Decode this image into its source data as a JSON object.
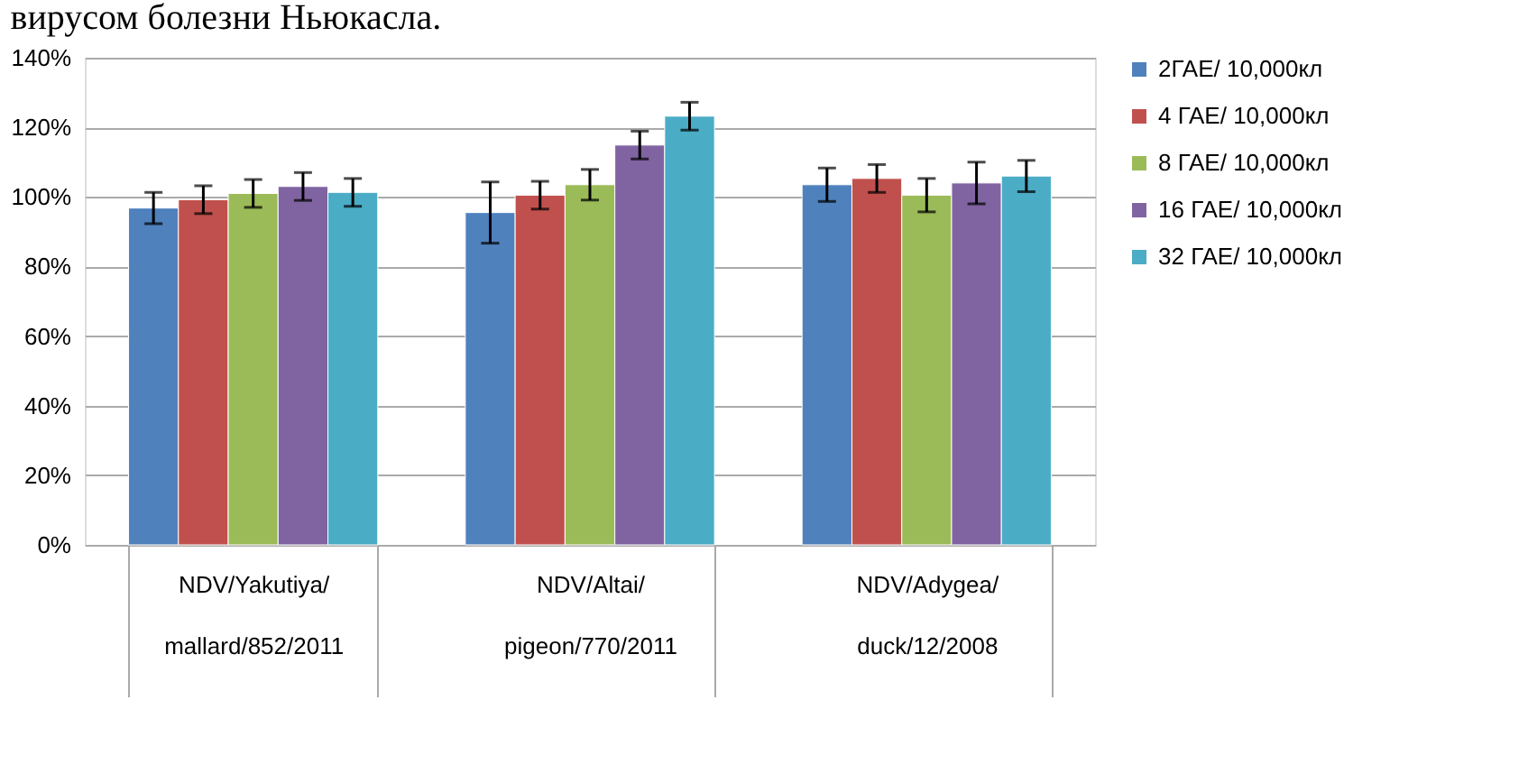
{
  "chart_data": {
    "type": "bar",
    "categories": [
      "NDV/Yakutiya/\nmallard/852/2011",
      "NDV/Altai/\npigeon/770/2011",
      "NDV/Adygea/\nduck/12/2008"
    ],
    "series": [
      {
        "name": "2ГАЕ/ 10,000кл",
        "color": "#4f81bd",
        "values": [
          96.8,
          95.5,
          103.5
        ],
        "errors": [
          4.5,
          8.8,
          4.8
        ]
      },
      {
        "name": "4 ГАЕ/ 10,000кл",
        "color": "#c0504d",
        "values": [
          99.2,
          100.5,
          105.3
        ],
        "errors": [
          4,
          4,
          4
        ]
      },
      {
        "name": "8 ГАЕ/ 10,000кл",
        "color": "#9bbb59",
        "values": [
          101,
          103.5,
          100.5
        ],
        "errors": [
          4,
          4.4,
          4.8
        ]
      },
      {
        "name": "16 ГАЕ/ 10,000кл",
        "color": "#8064a2",
        "values": [
          103,
          114.9,
          104
        ],
        "errors": [
          4,
          4,
          6
        ]
      },
      {
        "name": "32 ГАЕ/ 10,000кл",
        "color": "#4bacc6",
        "values": [
          101.3,
          123.2,
          106
        ],
        "errors": [
          4,
          4,
          4.5
        ]
      }
    ],
    "ylim": [
      0,
      140
    ],
    "yticks": [
      {
        "value": 0,
        "label": "0%"
      },
      {
        "value": 20,
        "label": "20%"
      },
      {
        "value": 40,
        "label": "40%"
      },
      {
        "value": 60,
        "label": "60%"
      },
      {
        "value": 80,
        "label": "80%"
      },
      {
        "value": 100,
        "label": "100%"
      },
      {
        "value": 120,
        "label": "120%"
      },
      {
        "value": 140,
        "label": "140%"
      }
    ],
    "grid": "y",
    "legend": "right",
    "annotations": [
      "вирусом болезни Ньюкасла."
    ]
  }
}
